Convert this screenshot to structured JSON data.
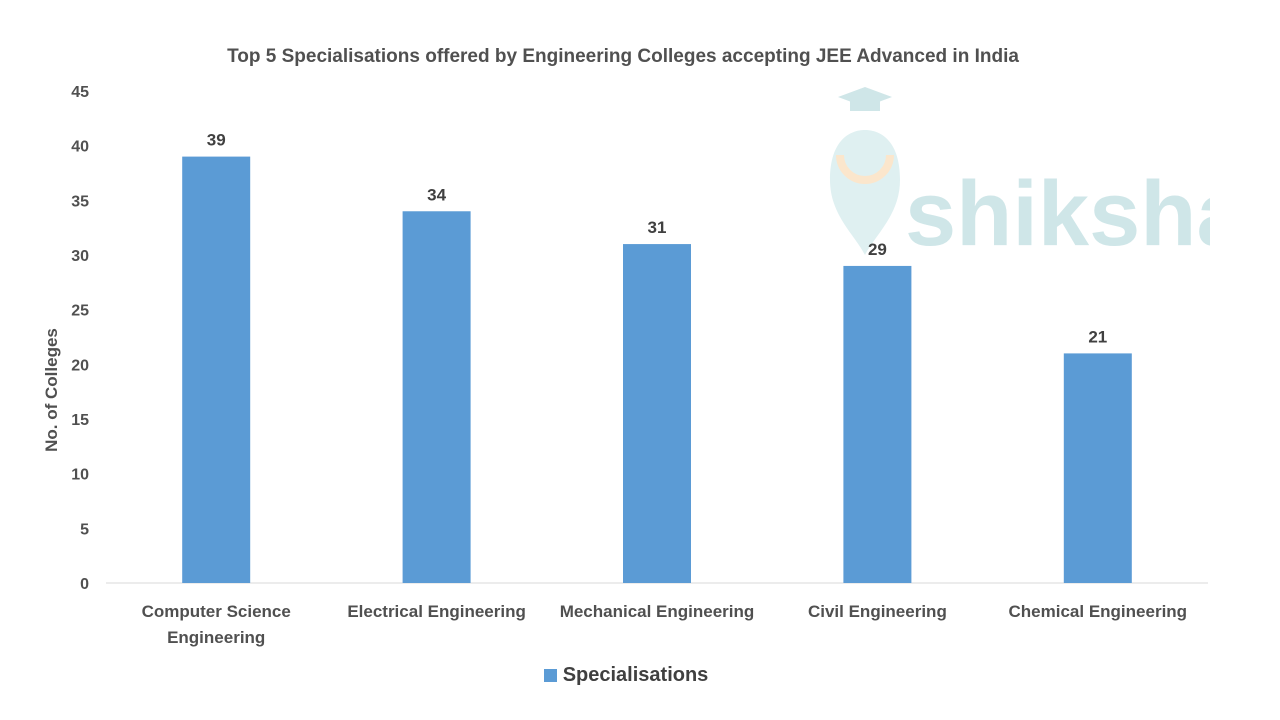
{
  "chart_data": {
    "type": "bar",
    "title": "Top 5 Specialisations offered by Engineering Colleges accepting JEE Advanced in India",
    "xlabel": "",
    "ylabel": "No. of Colleges",
    "categories": [
      [
        "Computer Science",
        "Engineering"
      ],
      [
        "Electrical Engineering"
      ],
      [
        "Mechanical Engineering"
      ],
      [
        "Civil Engineering"
      ],
      [
        "Chemical Engineering"
      ]
    ],
    "series": [
      {
        "name": "Specialisations",
        "values": [
          39,
          34,
          31,
          29,
          21
        ],
        "color": "#5B9BD5"
      }
    ],
    "ylim": [
      0,
      45
    ],
    "yticks": [
      0,
      5,
      10,
      15,
      20,
      25,
      30,
      35,
      40,
      45
    ],
    "data_labels": true,
    "grid": false,
    "legend_position": "bottom"
  },
  "watermark": {
    "text": "shiksha",
    "color": "#cfe6e8"
  }
}
